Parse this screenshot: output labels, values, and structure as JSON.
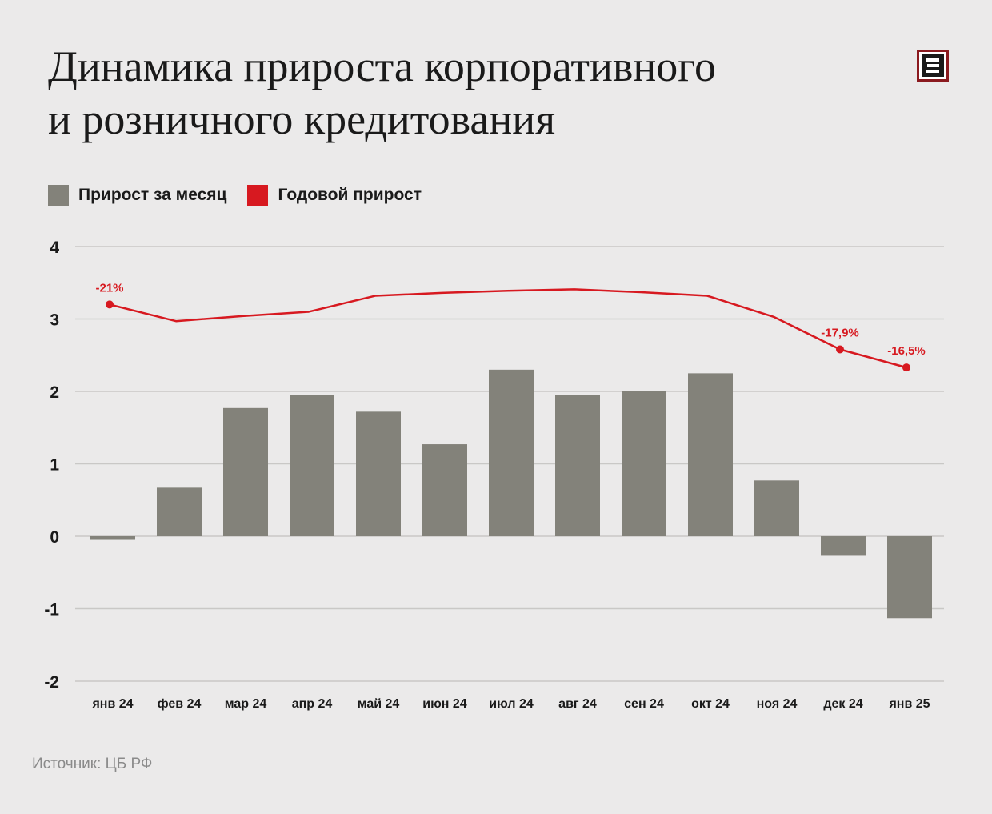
{
  "title": {
    "line1": "Динамика прироста корпоративного",
    "line2": "и розничного кредитования"
  },
  "logo_icon": "e-logo-icon",
  "legend": [
    {
      "label": "Прирост за месяц",
      "color": "#83827a"
    },
    {
      "label": "Годовой прирост",
      "color": "#d71920"
    }
  ],
  "source": "Источник: ЦБ РФ",
  "colors": {
    "bar": "#83827a",
    "line": "#d71920",
    "grid": "#c9c8c6",
    "text": "#1a1a1a"
  },
  "chart_data": {
    "type": "bar",
    "categories": [
      "янв 24",
      "фев 24",
      "мар 24",
      "апр 24",
      "май 24",
      "июн 24",
      "июл 24",
      "авг 24",
      "сен 24",
      "окт 24",
      "ноя 24",
      "дек 24",
      "янв 25"
    ],
    "series": [
      {
        "name": "Прирост за месяц",
        "type": "bar",
        "values": [
          -0.05,
          0.67,
          1.77,
          1.95,
          1.72,
          1.27,
          2.3,
          1.95,
          2.0,
          2.25,
          0.77,
          -0.27,
          -1.13
        ]
      },
      {
        "name": "Годовой прирост",
        "type": "line",
        "values": [
          3.2,
          2.97,
          3.04,
          3.1,
          3.32,
          3.36,
          3.39,
          3.41,
          3.37,
          3.32,
          3.03,
          2.58,
          2.33
        ],
        "labels": [
          {
            "index": 0,
            "text": "-21%"
          },
          {
            "index": 11,
            "text": "-17,9%"
          },
          {
            "index": 12,
            "text": "-16,5%"
          }
        ]
      }
    ],
    "yticks": [
      4,
      3,
      2,
      1,
      0,
      -1,
      -2
    ],
    "ylim": [
      -2,
      4
    ],
    "grid": true,
    "legend_position": "top-left"
  }
}
